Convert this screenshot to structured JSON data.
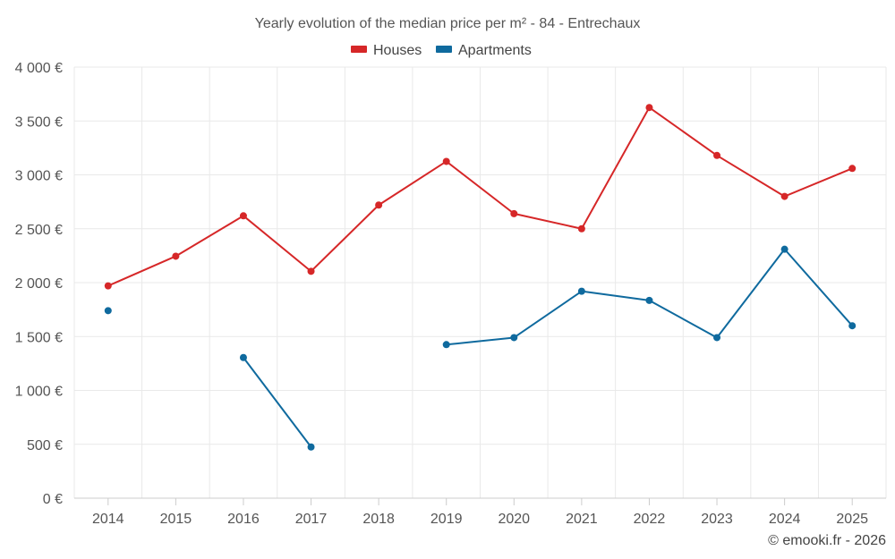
{
  "chart_data": {
    "type": "line",
    "title": "Yearly evolution of the median price per m² - 84 - Entrechaux",
    "categories": [
      "2014",
      "2015",
      "2016",
      "2017",
      "2018",
      "2019",
      "2020",
      "2021",
      "2022",
      "2023",
      "2024",
      "2025"
    ],
    "series": [
      {
        "name": "Houses",
        "color": "#d62728",
        "values": [
          1970,
          2245,
          2620,
          2105,
          2720,
          3125,
          2640,
          2500,
          3625,
          3180,
          2800,
          3060
        ]
      },
      {
        "name": "Apartments",
        "color": "#0f6a9e",
        "values": [
          1740,
          null,
          1305,
          475,
          null,
          1425,
          1490,
          1920,
          1835,
          1490,
          2310,
          1600
        ]
      }
    ],
    "ylim": [
      0,
      4000
    ],
    "yticks": [
      0,
      500,
      1000,
      1500,
      2000,
      2500,
      3000,
      3500,
      4000
    ],
    "ytick_labels": [
      "0 €",
      "500 €",
      "1 000 €",
      "1 500 €",
      "2 000 €",
      "2 500 €",
      "3 000 €",
      "3 500 €",
      "4 000 €"
    ],
    "xlabel": "",
    "ylabel": "",
    "grid": true,
    "legend_position": "top-center"
  },
  "footer": {
    "credit": "© emooki.fr - 2026"
  }
}
